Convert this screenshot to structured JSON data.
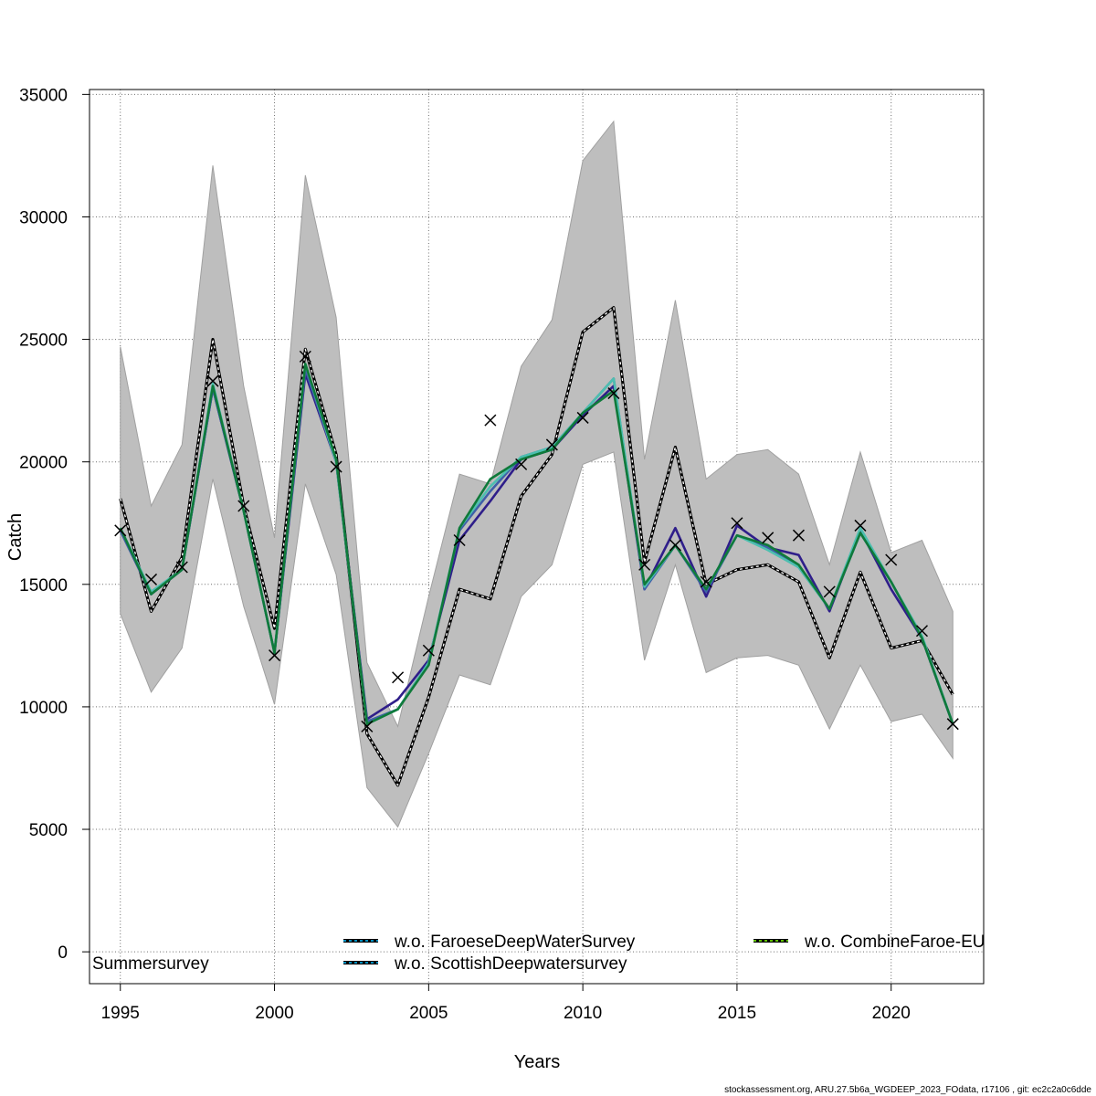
{
  "chart_data": {
    "type": "line",
    "xlabel": "Years",
    "ylabel": "Catch",
    "xlim": [
      1994,
      2023
    ],
    "ylim": [
      -1300,
      35200
    ],
    "x_ticks": [
      "1995",
      "2000",
      "2005",
      "2010",
      "2015",
      "2020"
    ],
    "y_ticks": [
      "0",
      "5000",
      "10000",
      "15000",
      "20000",
      "25000",
      "30000",
      "35000"
    ],
    "grid": true,
    "x": [
      1995,
      1996,
      1997,
      1998,
      1999,
      2000,
      2001,
      2002,
      2003,
      2004,
      2005,
      2006,
      2007,
      2008,
      2009,
      2010,
      2011,
      2012,
      2013,
      2014,
      2015,
      2016,
      2017,
      2018,
      2019,
      2020,
      2021,
      2022
    ],
    "band": {
      "color": "#bebebe",
      "upper": [
        24700,
        18200,
        20700,
        32100,
        23100,
        16900,
        31700,
        25900,
        11800,
        9200,
        14500,
        19500,
        19100,
        23900,
        25800,
        32300,
        33900,
        20100,
        26600,
        19300,
        20300,
        20500,
        19500,
        15800,
        20400,
        16300,
        16800,
        13900
      ],
      "lower": [
        13800,
        10600,
        12400,
        19300,
        14100,
        10100,
        19100,
        15400,
        6700,
        5100,
        8100,
        11300,
        10900,
        14500,
        15800,
        19900,
        20400,
        11900,
        15800,
        11400,
        12000,
        12100,
        11700,
        9100,
        11700,
        9400,
        9700,
        7900
      ]
    },
    "series": [
      {
        "color": "#000000",
        "dashed": true,
        "values": [
          18500,
          13900,
          16100,
          25000,
          18200,
          13200,
          24600,
          20300,
          8900,
          6800,
          10400,
          14800,
          14400,
          18600,
          20300,
          25300,
          26300,
          15900,
          20600,
          15000,
          15600,
          15800,
          15100,
          12000,
          15500,
          12400,
          12700,
          10500
        ]
      },
      {
        "color": "#2f1e8a",
        "dashed": false,
        "values": [
          17200,
          14600,
          15600,
          23000,
          18000,
          12200,
          23600,
          20000,
          9500,
          10300,
          11900,
          16800,
          18400,
          20100,
          20500,
          21900,
          23100,
          14800,
          17300,
          14500,
          17400,
          16500,
          16200,
          13900,
          17200,
          14800,
          12800,
          9300
        ]
      },
      {
        "name": "w.o. FaroeseDeepWaterSurvey",
        "color": "#3f5fa8",
        "dashed": false,
        "legend_dash": "#00bfff",
        "values": [
          17200,
          14600,
          15600,
          23000,
          18000,
          12200,
          23800,
          20000,
          9400,
          9900,
          11800,
          17200,
          18800,
          20200,
          20600,
          22000,
          23400,
          14800,
          16600,
          14700,
          17000,
          16500,
          15700,
          14000,
          17100,
          15100,
          12800,
          9300
        ]
      },
      {
        "name": "w.o. ScottishDeepwatersurvey",
        "color": "#4dbfb0",
        "dashed": false,
        "legend_dash": "#00bfff",
        "values": [
          17300,
          14700,
          15600,
          23200,
          18000,
          12200,
          24000,
          20000,
          9300,
          9900,
          11800,
          17300,
          19000,
          20200,
          20600,
          22000,
          23400,
          14900,
          16600,
          14800,
          17000,
          16400,
          15700,
          14000,
          17300,
          15100,
          12900,
          9300
        ]
      },
      {
        "name": "w.o. CombineFaroe-EU",
        "color": "#0f7a3a",
        "dashed": false,
        "legend_dash": "#7fff00",
        "values": [
          17300,
          14600,
          15600,
          23100,
          18000,
          12200,
          24000,
          20100,
          9300,
          9900,
          11700,
          17300,
          19300,
          20100,
          20500,
          22000,
          22900,
          15000,
          16600,
          14800,
          17000,
          16600,
          15800,
          14000,
          17100,
          15100,
          12800,
          9300
        ]
      }
    ],
    "observations": [
      {
        "x": 1995,
        "y": 17200
      },
      {
        "x": 1996,
        "y": 15200
      },
      {
        "x": 1997,
        "y": 15700
      },
      {
        "x": 1998,
        "y": 23300
      },
      {
        "x": 1999,
        "y": 18200
      },
      {
        "x": 2000,
        "y": 12100
      },
      {
        "x": 2001,
        "y": 24300
      },
      {
        "x": 2002,
        "y": 19800
      },
      {
        "x": 2003,
        "y": 9200
      },
      {
        "x": 2004,
        "y": 11200
      },
      {
        "x": 2005,
        "y": 12300
      },
      {
        "x": 2006,
        "y": 16800
      },
      {
        "x": 2007,
        "y": 21700
      },
      {
        "x": 2008,
        "y": 19900
      },
      {
        "x": 2009,
        "y": 20700
      },
      {
        "x": 2010,
        "y": 21800
      },
      {
        "x": 2011,
        "y": 22800
      },
      {
        "x": 2012,
        "y": 15800
      },
      {
        "x": 2013,
        "y": 16600
      },
      {
        "x": 2014,
        "y": 15100
      },
      {
        "x": 2015,
        "y": 17500
      },
      {
        "x": 2016,
        "y": 16900
      },
      {
        "x": 2017,
        "y": 17000
      },
      {
        "x": 2018,
        "y": 14700
      },
      {
        "x": 2019,
        "y": 17400
      },
      {
        "x": 2020,
        "y": 16000
      },
      {
        "x": 2021,
        "y": 13100
      },
      {
        "x": 2022,
        "y": 9300
      }
    ],
    "annotation": "Summersurvey",
    "legend_placement": "bottom"
  },
  "footer": "stockassessment.org, ARU.27.5b6a_WGDEEP_2023_FOdata, r17106 , git: ec2c2a0c6dde"
}
